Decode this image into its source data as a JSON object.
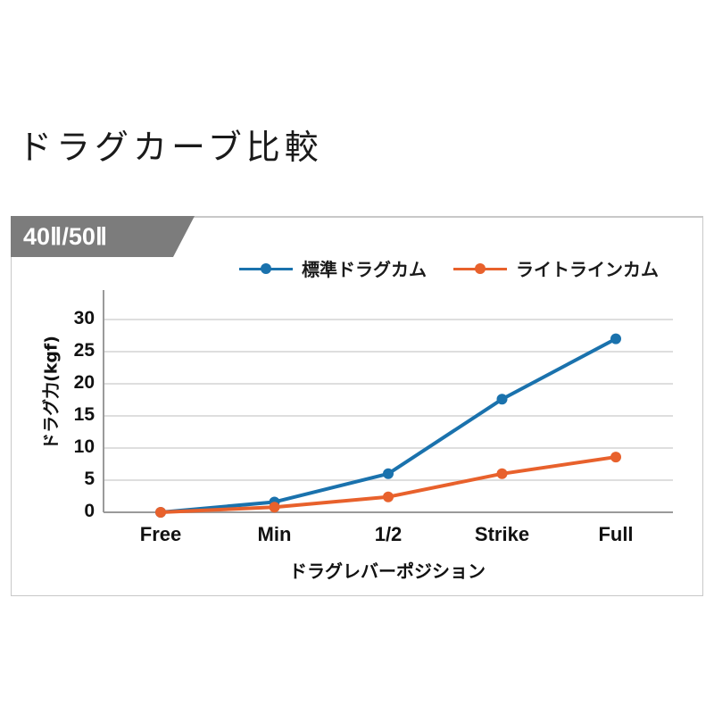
{
  "page": {
    "title": "ドラグカーブ比較"
  },
  "banner": {
    "label": "40Ⅱ/50Ⅱ",
    "color": "#7c7c7c"
  },
  "chart_data": {
    "type": "line",
    "title": "ドラグカーブ比較",
    "subtitle": "40Ⅱ/50Ⅱ",
    "categories": [
      "Free",
      "Min",
      "1/2",
      "Strike",
      "Full"
    ],
    "series": [
      {
        "name": "標準ドラグカム",
        "color": "#1a72ad",
        "values": [
          0,
          1.6,
          6.0,
          17.6,
          27.0
        ]
      },
      {
        "name": "ライトラインカム",
        "color": "#e8612c",
        "values": [
          0,
          0.8,
          2.4,
          6.0,
          8.6
        ]
      }
    ],
    "xlabel": "ドラグレバーポジション",
    "ylabel": "ドラグ力(kgf)",
    "ylim": [
      0,
      30
    ],
    "yticks": [
      0,
      5,
      10,
      15,
      20,
      25,
      30
    ],
    "grid": true,
    "legend_position": "top-right"
  }
}
